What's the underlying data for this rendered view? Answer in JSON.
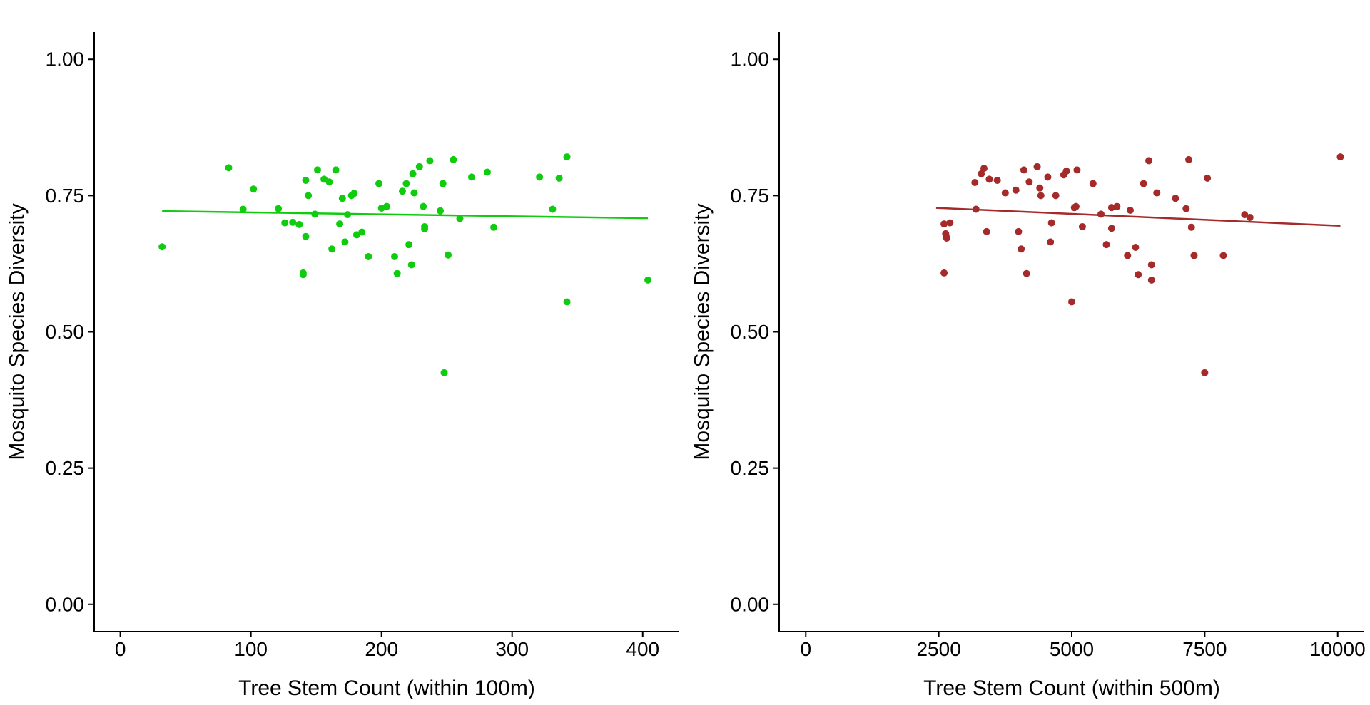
{
  "chart_data": [
    {
      "type": "scatter",
      "title": "",
      "xlabel": "Tree Stem Count (within 100m)",
      "ylabel": "Mosquito Species Diversity",
      "xlim": [
        -20,
        428
      ],
      "ylim": [
        -0.05,
        1.05
      ],
      "xticks": [
        0,
        100,
        200,
        300,
        400
      ],
      "xtick_labels": [
        "0",
        "100",
        "200",
        "300",
        "400"
      ],
      "yticks": [
        0.0,
        0.25,
        0.5,
        0.75,
        1.0
      ],
      "ytick_labels": [
        "0.00",
        "0.25",
        "0.50",
        "0.75",
        "1.00"
      ],
      "grid": false,
      "color": "#0fcc0f",
      "series": [
        {
          "points": [
            [
              32,
              0.656
            ],
            [
              83,
              0.801
            ],
            [
              94,
              0.725
            ],
            [
              102,
              0.762
            ],
            [
              121,
              0.726
            ],
            [
              126,
              0.7
            ],
            [
              132,
              0.701
            ],
            [
              137,
              0.697
            ],
            [
              140,
              0.608
            ],
            [
              140,
              0.605
            ],
            [
              142,
              0.675
            ],
            [
              142,
              0.778
            ],
            [
              144,
              0.75
            ],
            [
              149,
              0.716
            ],
            [
              151,
              0.797
            ],
            [
              156,
              0.78
            ],
            [
              160,
              0.775
            ],
            [
              162,
              0.652
            ],
            [
              165,
              0.797
            ],
            [
              168,
              0.698
            ],
            [
              170,
              0.745
            ],
            [
              172,
              0.665
            ],
            [
              174,
              0.715
            ],
            [
              177,
              0.75
            ],
            [
              179,
              0.754
            ],
            [
              181,
              0.678
            ],
            [
              185,
              0.683
            ],
            [
              190,
              0.638
            ],
            [
              198,
              0.772
            ],
            [
              200,
              0.727
            ],
            [
              204,
              0.73
            ],
            [
              210,
              0.638
            ],
            [
              212,
              0.607
            ],
            [
              216,
              0.758
            ],
            [
              219,
              0.772
            ],
            [
              221,
              0.66
            ],
            [
              223,
              0.623
            ],
            [
              224,
              0.79
            ],
            [
              225,
              0.755
            ],
            [
              229,
              0.803
            ],
            [
              232,
              0.73
            ],
            [
              233,
              0.693
            ],
            [
              233,
              0.689
            ],
            [
              237,
              0.814
            ],
            [
              245,
              0.722
            ],
            [
              247,
              0.772
            ],
            [
              248,
              0.425
            ],
            [
              251,
              0.641
            ],
            [
              255,
              0.816
            ],
            [
              260,
              0.708
            ],
            [
              269,
              0.784
            ],
            [
              281,
              0.793
            ],
            [
              286,
              0.692
            ],
            [
              321,
              0.784
            ],
            [
              331,
              0.725
            ],
            [
              336,
              0.782
            ],
            [
              342,
              0.821
            ],
            [
              342,
              0.555
            ],
            [
              404,
              0.595
            ]
          ]
        }
      ],
      "trendline": {
        "x": [
          32,
          404
        ],
        "y": [
          0.7215,
          0.7085
        ]
      }
    },
    {
      "type": "scatter",
      "title": "",
      "xlabel": "Tree Stem Count (within 500m)",
      "ylabel": "Mosquito Species Diversity",
      "xlim": [
        -500,
        10500
      ],
      "ylim": [
        -0.05,
        1.05
      ],
      "xticks": [
        0,
        2500,
        5000,
        7500,
        10000
      ],
      "xtick_labels": [
        "0",
        "2500",
        "5000",
        "7500",
        "10000"
      ],
      "yticks": [
        0.0,
        0.25,
        0.5,
        0.75,
        1.0
      ],
      "ytick_labels": [
        "0.00",
        "0.25",
        "0.50",
        "0.75",
        "1.00"
      ],
      "grid": false,
      "color": "#a52a2a",
      "series": [
        {
          "points": [
            [
              2600,
              0.698
            ],
            [
              2600,
              0.608
            ],
            [
              2630,
              0.68
            ],
            [
              2640,
              0.675
            ],
            [
              2650,
              0.672
            ],
            [
              2710,
              0.7
            ],
            [
              3180,
              0.774
            ],
            [
              3200,
              0.725
            ],
            [
              3300,
              0.79
            ],
            [
              3350,
              0.8
            ],
            [
              3400,
              0.684
            ],
            [
              3450,
              0.78
            ],
            [
              3600,
              0.778
            ],
            [
              3750,
              0.755
            ],
            [
              3950,
              0.76
            ],
            [
              4000,
              0.684
            ],
            [
              4050,
              0.652
            ],
            [
              4100,
              0.797
            ],
            [
              4150,
              0.607
            ],
            [
              4200,
              0.775
            ],
            [
              4350,
              0.803
            ],
            [
              4400,
              0.764
            ],
            [
              4420,
              0.75
            ],
            [
              4550,
              0.784
            ],
            [
              4600,
              0.665
            ],
            [
              4620,
              0.7
            ],
            [
              4700,
              0.75
            ],
            [
              4850,
              0.788
            ],
            [
              4900,
              0.795
            ],
            [
              5000,
              0.555
            ],
            [
              5050,
              0.728
            ],
            [
              5080,
              0.73
            ],
            [
              5100,
              0.797
            ],
            [
              5200,
              0.693
            ],
            [
              5400,
              0.772
            ],
            [
              5550,
              0.716
            ],
            [
              5650,
              0.66
            ],
            [
              5750,
              0.69
            ],
            [
              5750,
              0.728
            ],
            [
              5850,
              0.73
            ],
            [
              6050,
              0.64
            ],
            [
              6100,
              0.723
            ],
            [
              6200,
              0.655
            ],
            [
              6250,
              0.605
            ],
            [
              6350,
              0.772
            ],
            [
              6450,
              0.814
            ],
            [
              6500,
              0.623
            ],
            [
              6500,
              0.595
            ],
            [
              6600,
              0.755
            ],
            [
              6950,
              0.745
            ],
            [
              7150,
              0.726
            ],
            [
              7200,
              0.816
            ],
            [
              7250,
              0.692
            ],
            [
              7300,
              0.64
            ],
            [
              7500,
              0.425
            ],
            [
              7550,
              0.782
            ],
            [
              7850,
              0.64
            ],
            [
              8250,
              0.715
            ],
            [
              8350,
              0.71
            ],
            [
              10050,
              0.821
            ]
          ]
        }
      ],
      "trendline": {
        "x": [
          2450,
          10050
        ],
        "y": [
          0.7275,
          0.6945
        ]
      }
    }
  ]
}
